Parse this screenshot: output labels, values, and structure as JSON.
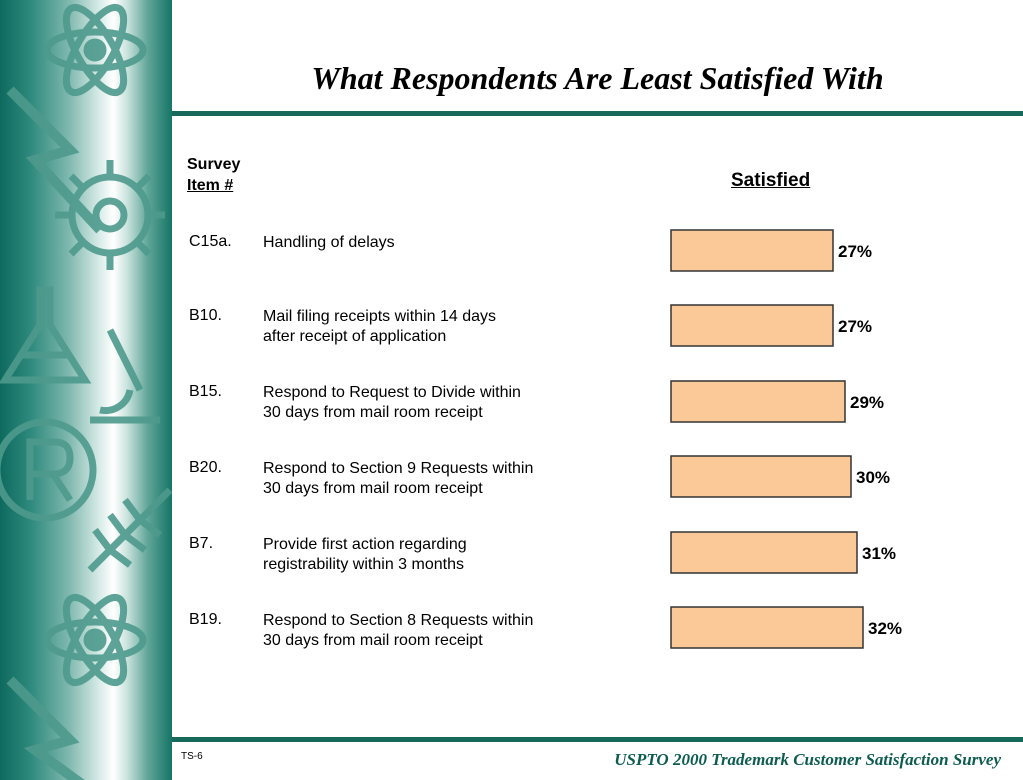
{
  "title": "What Respondents Are Least Satisfied With",
  "column_headers": {
    "survey_line1": "Survey",
    "survey_line2": "Item #",
    "satisfied": "Satisfied"
  },
  "footer": {
    "slide_id": "TS-6",
    "survey_title": "USPTO 2000 Trademark Customer Satisfaction Survey"
  },
  "colors": {
    "bar_fill": "#fbc998",
    "bar_stroke": "#333333",
    "rule": "#17695c",
    "footer_text": "#0d5c50"
  },
  "chart_data": {
    "type": "bar",
    "orientation": "horizontal",
    "series": [
      {
        "name": "Satisfied",
        "values": [
          27,
          27,
          29,
          30,
          31,
          32
        ]
      }
    ],
    "categories": [
      "C15a.",
      "B10.",
      "B15.",
      "B20.",
      "B7.",
      "B19."
    ],
    "data_labels": [
      "27%",
      "27%",
      "29%",
      "30%",
      "31%",
      "32%"
    ],
    "items": [
      {
        "id": "C15a.",
        "line1": "Handling of delays",
        "line2": ""
      },
      {
        "id": "B10.",
        "line1": "Mail filing receipts within 14 days",
        "line2": "after receipt of application"
      },
      {
        "id": "B15.",
        "line1": "Respond to Request to Divide within",
        "line2": "30 days from mail room receipt"
      },
      {
        "id": "B20.",
        "line1": "Respond to Section 9 Requests within",
        "line2": "30 days from mail room receipt"
      },
      {
        "id": "B7.",
        "line1": "Provide first action regarding",
        "line2": "registrability within 3 months"
      },
      {
        "id": "B19.",
        "line1": "Respond to Section 8 Requests within",
        "line2": "30 days from mail room receipt"
      }
    ]
  }
}
